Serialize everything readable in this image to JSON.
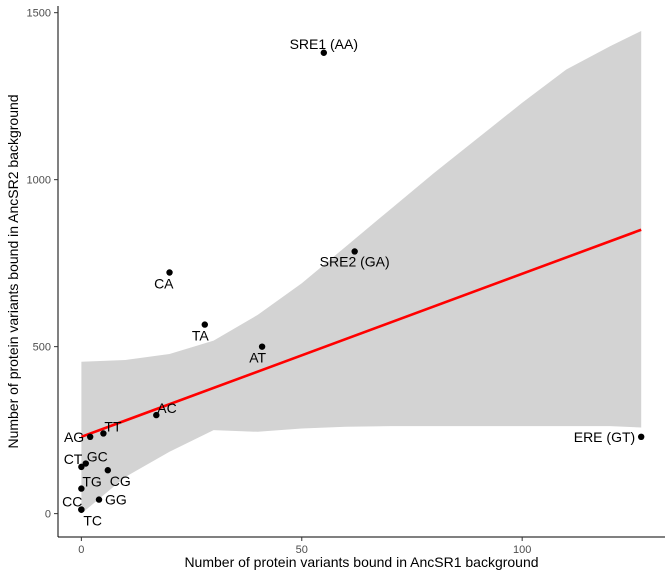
{
  "chart_data": {
    "type": "scatter",
    "title": "",
    "xlabel": "Number of protein variants bound in AncSR1 background",
    "ylabel": "Number of protein variants bound in AncSR2 background",
    "xlim": [
      -5.3,
      132.4
    ],
    "ylim": [
      -70,
      1520
    ],
    "xticks": [
      0,
      50,
      100
    ],
    "yticks": [
      0,
      500,
      1000,
      1500
    ],
    "grid": false,
    "legend": "none",
    "points": [
      {
        "label": "SRE1 (AA)",
        "x": 55,
        "y": 1380,
        "label_pos": "above"
      },
      {
        "label": "SRE2 (GA)",
        "x": 62,
        "y": 785,
        "label_pos": "below"
      },
      {
        "label": "CA",
        "x": 20,
        "y": 722,
        "label_pos": "below-left"
      },
      {
        "label": "TA",
        "x": 28,
        "y": 566,
        "label_pos": "below-left"
      },
      {
        "label": "AT",
        "x": 41,
        "y": 500,
        "label_pos": "below-left"
      },
      {
        "label": "AC",
        "x": 17,
        "y": 295,
        "label_pos": "above-right"
      },
      {
        "label": "TT",
        "x": 5,
        "y": 240,
        "label_pos": "above-right"
      },
      {
        "label": "AG",
        "x": 2,
        "y": 230,
        "label_pos": "left"
      },
      {
        "label": "ERE (GT)",
        "x": 127,
        "y": 230,
        "label_pos": "left"
      },
      {
        "label": "CT",
        "x": 0,
        "y": 140,
        "label_pos": "above-left"
      },
      {
        "label": "GC",
        "x": 1,
        "y": 150,
        "label_pos": "above-right"
      },
      {
        "label": "CG",
        "x": 6,
        "y": 130,
        "label_pos": "below-right"
      },
      {
        "label": "TG",
        "x": 0,
        "y": 75,
        "label_pos": "above-right"
      },
      {
        "label": "GG",
        "x": 4,
        "y": 42,
        "label_pos": "right"
      },
      {
        "label": "CC",
        "x": 0,
        "y": 12,
        "label_pos": "above-left"
      },
      {
        "label": "TC",
        "x": 0,
        "y": 12,
        "label_pos": "below-right"
      }
    ],
    "fit_line": {
      "x": [
        0,
        127
      ],
      "y": [
        230,
        850
      ],
      "color": "#ff0000"
    },
    "confidence_band": {
      "x": [
        0,
        10,
        20,
        30,
        40,
        50,
        60,
        70,
        80,
        90,
        100,
        110,
        120,
        127
      ],
      "upper": [
        455,
        460,
        478,
        518,
        595,
        690,
        800,
        910,
        1020,
        1125,
        1230,
        1330,
        1400,
        1445
      ],
      "lower": [
        0,
        110,
        185,
        250,
        245,
        255,
        260,
        262,
        262,
        262,
        262,
        262,
        262,
        258
      ],
      "color": "#d3d3d3"
    },
    "point_color": "#000000"
  }
}
